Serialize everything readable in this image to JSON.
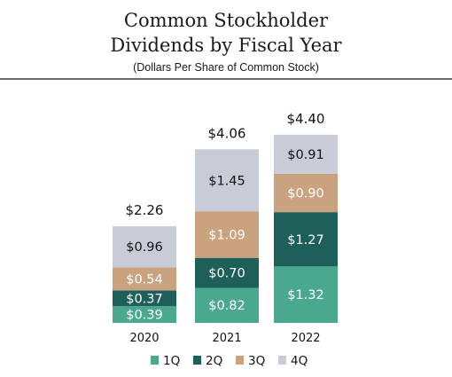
{
  "chart_data": {
    "type": "bar",
    "stacked": true,
    "title_lines": [
      "Common Stockholder",
      "Dividends by Fiscal Year"
    ],
    "subtitle": "(Dollars Per Share of Common Stock)",
    "categories": [
      "2020",
      "2021",
      "2022"
    ],
    "series": [
      {
        "name": "1Q",
        "color": "#4aa88e",
        "values": [
          0.39,
          0.82,
          1.32
        ],
        "labels": [
          "$0.39",
          "$0.82",
          "$1.32"
        ]
      },
      {
        "name": "2Q",
        "color": "#1d5f59",
        "values": [
          0.37,
          0.7,
          1.27
        ],
        "labels": [
          "$0.37",
          "$0.70",
          "$1.27"
        ]
      },
      {
        "name": "3Q",
        "color": "#c9a27f",
        "values": [
          0.54,
          1.09,
          0.9
        ],
        "labels": [
          "$0.54",
          "$1.09",
          "$0.90"
        ]
      },
      {
        "name": "4Q",
        "color": "#c8ccd6",
        "values": [
          0.96,
          1.45,
          0.91
        ],
        "labels": [
          "$0.96",
          "$1.45",
          "$0.91"
        ]
      }
    ],
    "totals": [
      2.26,
      4.06,
      4.4
    ],
    "total_labels": [
      "$2.26",
      "$4.06",
      "$4.40"
    ],
    "ylim": [
      0,
      4.4
    ],
    "grid": false,
    "legend_position": "bottom"
  }
}
